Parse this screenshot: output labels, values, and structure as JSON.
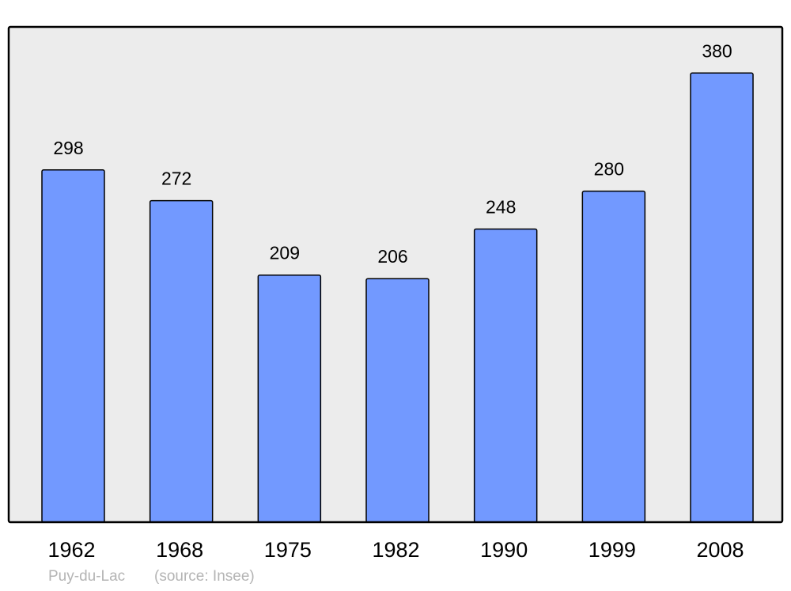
{
  "chart_data": {
    "type": "bar",
    "categories": [
      "1962",
      "1968",
      "1975",
      "1982",
      "1990",
      "1999",
      "2008"
    ],
    "values": [
      298,
      272,
      209,
      206,
      248,
      280,
      380
    ],
    "title": "",
    "xlabel": "",
    "ylabel": "",
    "ylim": [
      0,
      419
    ],
    "grid": false,
    "data_labels": true,
    "colors": {
      "bar": "#7299ff",
      "plot_background": "#ececec",
      "border": "#000000"
    }
  },
  "footer": {
    "place": "Puy-du-Lac",
    "source": "(source: Insee)"
  }
}
